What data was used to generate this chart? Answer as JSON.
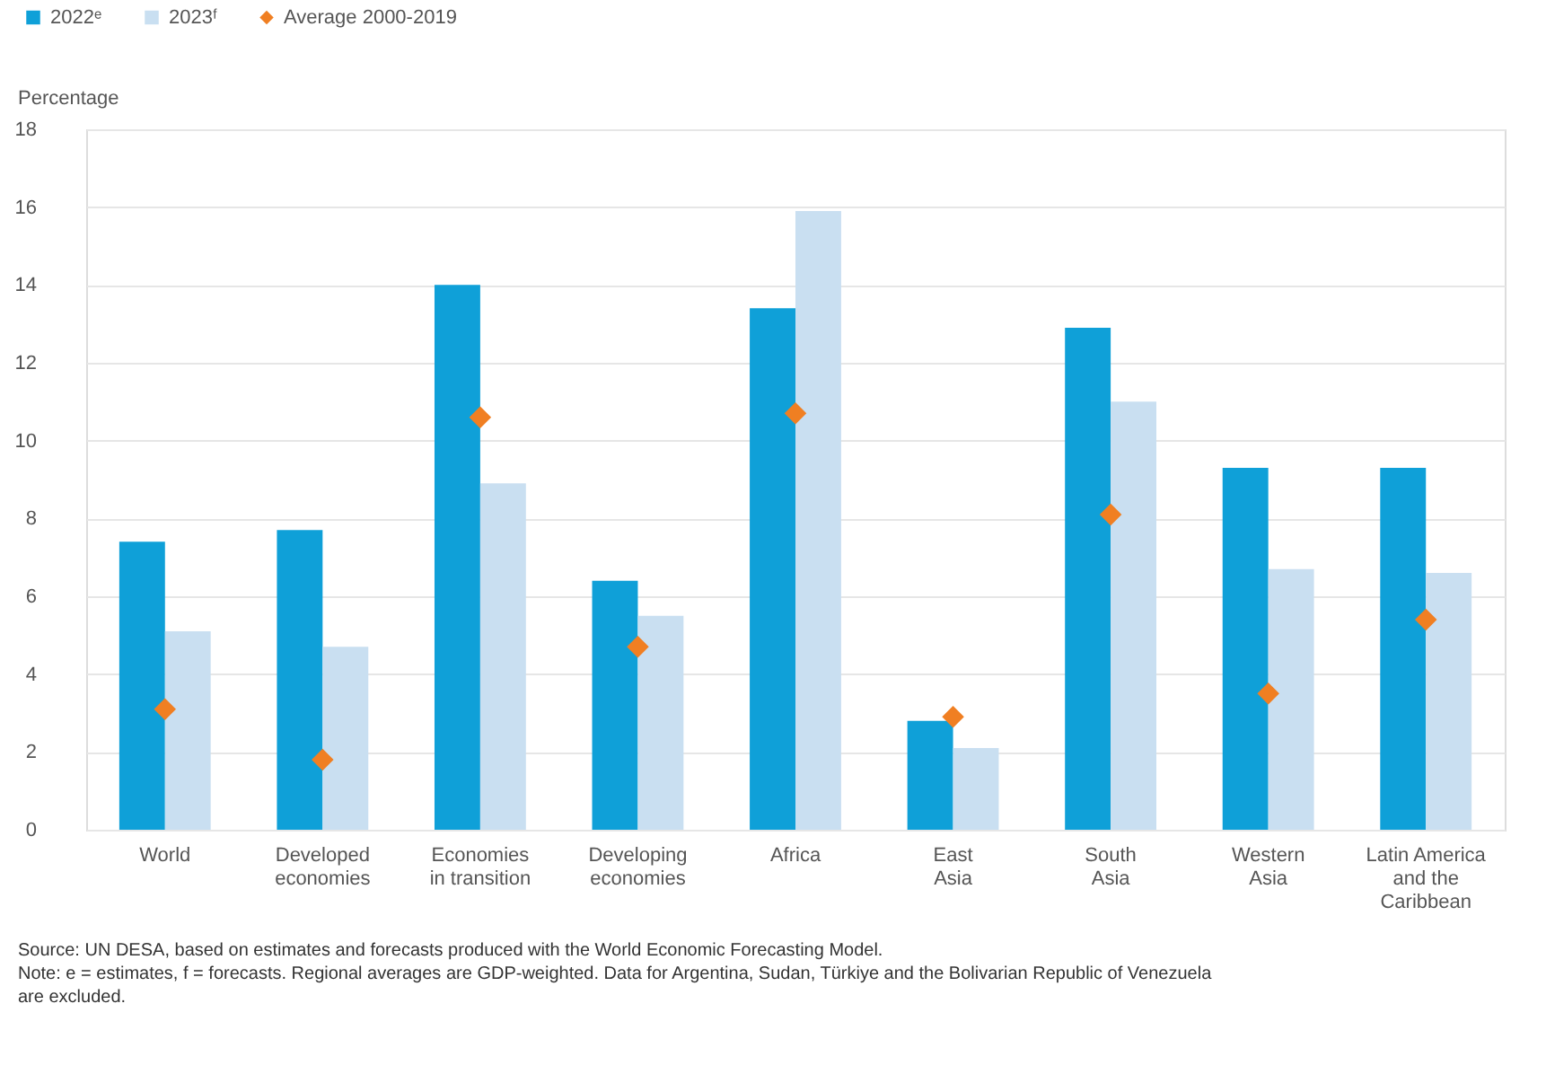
{
  "chart_data": {
    "type": "bar",
    "ylabel": "Percentage",
    "categories": [
      "World",
      "Developed\neconomies",
      "Economies\nin transition",
      "Developing\neconomies",
      "Africa",
      "East\nAsia",
      "South\nAsia",
      "Western\nAsia",
      "Latin America\nand the\nCaribbean"
    ],
    "series": [
      {
        "name": "2022ᵉ",
        "color": "#0fa0d8",
        "values": [
          7.4,
          7.7,
          14.0,
          6.4,
          13.4,
          2.8,
          12.9,
          9.3,
          9.3
        ]
      },
      {
        "name": "2023ᶠ",
        "color": "#c9dff1",
        "values": [
          5.1,
          4.7,
          8.9,
          5.5,
          15.9,
          2.1,
          11.0,
          6.7,
          6.6
        ]
      },
      {
        "name": "Average 2000-2019",
        "color": "#f07f22",
        "type": "scatter",
        "marker": "diamond",
        "values": [
          3.1,
          1.8,
          10.6,
          4.7,
          10.7,
          2.9,
          8.1,
          3.5,
          5.4
        ]
      }
    ],
    "ylim": [
      0,
      18
    ],
    "yticks": [
      0,
      2,
      4,
      6,
      8,
      10,
      12,
      14,
      16,
      18
    ],
    "grid": "y",
    "legend": "top left",
    "annotations": [
      "Source: UN DESA, based on estimates and forecasts produced with the World Economic Forecasting Model.",
      "Note: e = estimates, f = forecasts. Regional averages are GDP-weighted. Data for Argentina, Sudan, Türkiye and the Bolivarian Republic of Venezuela are excluded."
    ]
  }
}
